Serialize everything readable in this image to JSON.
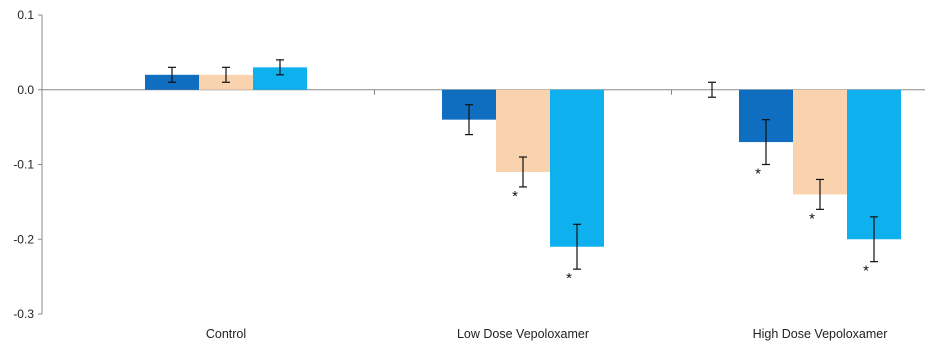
{
  "chart_data": {
    "type": "bar",
    "categories": [
      "Control",
      "Low Dose Vepoloxamer",
      "High Dose Vepoloxamer"
    ],
    "yticks": [
      "0.1",
      "0.0",
      "-0.1",
      "-0.2",
      "-0.3"
    ],
    "ylim": [
      -0.3,
      0.1
    ],
    "grid": false,
    "legend": "none",
    "series": [
      {
        "color": "#0F6EBF",
        "values": [
          0.02,
          -0.04,
          -0.07
        ],
        "errors": [
          0.01,
          0.02,
          0.03
        ],
        "significant": [
          false,
          false,
          true
        ]
      },
      {
        "color": "#F9D2AE",
        "values": [
          0.02,
          -0.11,
          -0.14
        ],
        "errors": [
          0.01,
          0.02,
          0.02
        ],
        "significant": [
          false,
          true,
          true
        ]
      },
      {
        "color": "#0FB0EE",
        "values": [
          0.03,
          -0.21,
          -0.2
        ],
        "errors": [
          0.01,
          0.03,
          0.03
        ],
        "significant": [
          false,
          true,
          true
        ]
      }
    ],
    "extra_errorbars": [
      {
        "category": "High Dose Vepoloxamer",
        "value": 0.0,
        "error": 0.01
      }
    ],
    "significance_marker": "*"
  }
}
